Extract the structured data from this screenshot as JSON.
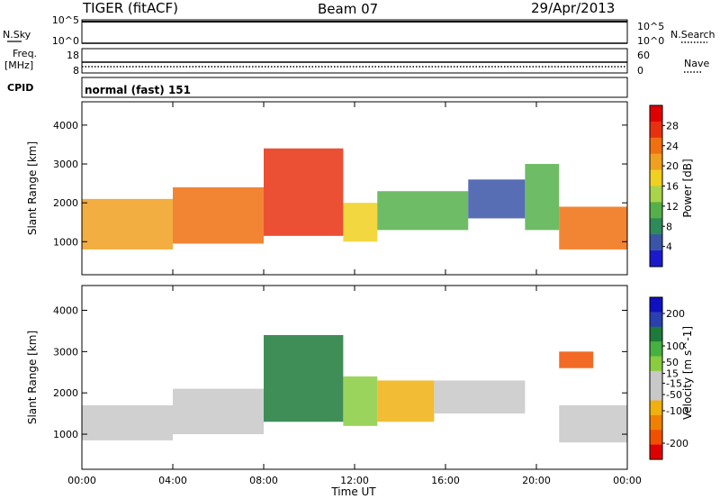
{
  "header": {
    "station": "TIGER (fitACF)",
    "beam": "Beam 07",
    "date": "29/Apr/2013"
  },
  "strip_labels": {
    "nsky": "N.Sky",
    "nsearch": "N.Search",
    "freq_line1": "Freq.",
    "freq_line2": "[MHz]",
    "nave": "Nave",
    "cpid": "CPID",
    "cpid_value": "normal (fast) 151"
  },
  "strip_ticks": {
    "noise_left": [
      "10^5",
      "10^0"
    ],
    "noise_right": [
      "10^5",
      "10^0"
    ],
    "freq_left": [
      "18",
      "8"
    ],
    "freq_right": [
      "60",
      "0"
    ]
  },
  "colors": {
    "power_scale": [
      "#1a1acc",
      "#3a55a8",
      "#2f8a5a",
      "#55b04a",
      "#a8d44a",
      "#f0d020",
      "#f0a020",
      "#f07010",
      "#e83010",
      "#e00000"
    ],
    "velocity_scale": [
      "#1010c0",
      "#2a40b0",
      "#1e7a3a",
      "#46b040",
      "#8acc40",
      "#c8c8c8",
      "#c8c8c8",
      "#f0b010",
      "#f08000",
      "#f05000",
      "#e00000"
    ],
    "axis": "#000000"
  },
  "chart_data": [
    {
      "type": "heatmap",
      "panel": "power",
      "x": [
        "00:00",
        "04:00",
        "08:00",
        "12:00",
        "16:00",
        "20:00",
        "00:00"
      ],
      "xlabel": "",
      "ylabel": "Slant Range [km]",
      "y_ticks": [
        1000,
        2000,
        3000,
        4000
      ],
      "ylim": [
        150,
        4600
      ],
      "colorbar": {
        "label": "Power [dB]",
        "ticks": [
          4,
          8,
          12,
          16,
          20,
          24,
          28
        ],
        "range": [
          0,
          32
        ]
      },
      "regions": [
        {
          "from_hour": 0.0,
          "to_hour": 4.0,
          "range_low_km": 800,
          "range_high_km": 2100,
          "power_db": 22
        },
        {
          "from_hour": 4.0,
          "to_hour": 8.0,
          "range_low_km": 950,
          "range_high_km": 2400,
          "power_db": 24
        },
        {
          "from_hour": 8.0,
          "to_hour": 11.5,
          "range_low_km": 1150,
          "range_high_km": 3400,
          "power_db": 26
        },
        {
          "from_hour": 11.5,
          "to_hour": 13.0,
          "range_low_km": 1000,
          "range_high_km": 2000,
          "power_db": 18
        },
        {
          "from_hour": 13.0,
          "to_hour": 17.0,
          "range_low_km": 1300,
          "range_high_km": 2300,
          "power_db": 10
        },
        {
          "from_hour": 17.0,
          "to_hour": 19.5,
          "range_low_km": 1600,
          "range_high_km": 2600,
          "power_db": 6
        },
        {
          "from_hour": 19.5,
          "to_hour": 21.0,
          "range_low_km": 1300,
          "range_high_km": 3000,
          "power_db": 12
        },
        {
          "from_hour": 21.0,
          "to_hour": 24.0,
          "range_low_km": 800,
          "range_high_km": 1900,
          "power_db": 24
        }
      ]
    },
    {
      "type": "heatmap",
      "panel": "velocity",
      "x": [
        "00:00",
        "04:00",
        "08:00",
        "12:00",
        "16:00",
        "20:00",
        "00:00"
      ],
      "xlabel": "Time UT",
      "ylabel": "Slant Range [km]",
      "y_ticks": [
        1000,
        2000,
        3000,
        4000
      ],
      "ylim": [
        150,
        4600
      ],
      "colorbar": {
        "label": "Velocity [m s^-1]",
        "ticks": [
          200,
          100,
          50,
          15,
          -15,
          -50,
          -100,
          -200
        ],
        "range": [
          -250,
          250
        ]
      },
      "regions": [
        {
          "from_hour": 0.0,
          "to_hour": 4.0,
          "range_low_km": 850,
          "range_high_km": 1700,
          "velocity_ms": 0
        },
        {
          "from_hour": 4.0,
          "to_hour": 8.0,
          "range_low_km": 1000,
          "range_high_km": 2100,
          "velocity_ms": -20
        },
        {
          "from_hour": 8.0,
          "to_hour": 11.5,
          "range_low_km": 1300,
          "range_high_km": 3400,
          "velocity_ms": 150
        },
        {
          "from_hour": 11.5,
          "to_hour": 13.0,
          "range_low_km": 1200,
          "range_high_km": 2400,
          "velocity_ms": 40
        },
        {
          "from_hour": 13.0,
          "to_hour": 15.5,
          "range_low_km": 1300,
          "range_high_km": 2300,
          "velocity_ms": -90
        },
        {
          "from_hour": 15.5,
          "to_hour": 19.5,
          "range_low_km": 1500,
          "range_high_km": 2300,
          "velocity_ms": -30
        },
        {
          "from_hour": 21.0,
          "to_hour": 22.5,
          "range_low_km": 2600,
          "range_high_km": 3000,
          "velocity_ms": -180
        },
        {
          "from_hour": 21.0,
          "to_hour": 24.0,
          "range_low_km": 800,
          "range_high_km": 1700,
          "velocity_ms": 0
        }
      ]
    }
  ]
}
